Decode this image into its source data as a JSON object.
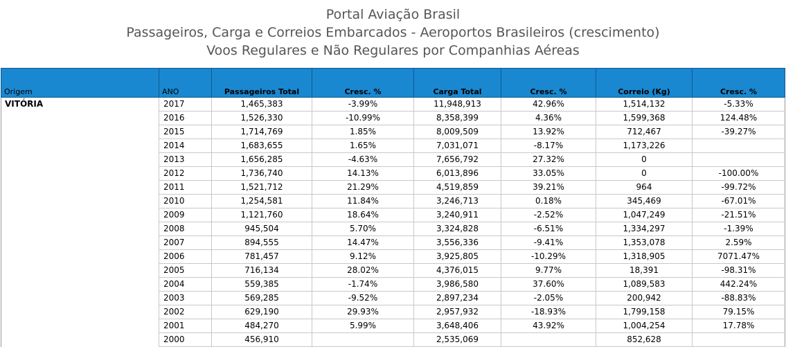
{
  "header": {
    "title": "Portal Aviação Brasil",
    "subtitle1": "Passageiros, Carga e Correios Embarcados - Aeroportos Brasileiros (crescimento)",
    "subtitle2": "Voos Regulares e Não Regulares por Companhias Aéreas"
  },
  "colors": {
    "header_bg": "#1a88d0",
    "title_text": "#555555",
    "grid_line": "#c8c8c8"
  },
  "table": {
    "columns": {
      "origem": "Origem",
      "ano": "ANO",
      "passageiros": "Passageiros Total",
      "cresc1": "Cresc. %",
      "carga": "Carga Total",
      "cresc2": "Cresc. %",
      "correio": "Correio (Kg)",
      "cresc3": "Cresc. %"
    },
    "origem": "VITÓRIA",
    "rows": [
      {
        "ano": "2017",
        "passageiros": "1,465,383",
        "cresc1": "-3.99%",
        "carga": "11,948,913",
        "cresc2": "42.96%",
        "correio": "1,514,132",
        "cresc3": "-5.33%"
      },
      {
        "ano": "2016",
        "passageiros": "1,526,330",
        "cresc1": "-10.99%",
        "carga": "8,358,399",
        "cresc2": "4.36%",
        "correio": "1,599,368",
        "cresc3": "124.48%"
      },
      {
        "ano": "2015",
        "passageiros": "1,714,769",
        "cresc1": "1.85%",
        "carga": "8,009,509",
        "cresc2": "13.92%",
        "correio": "712,467",
        "cresc3": "-39.27%"
      },
      {
        "ano": "2014",
        "passageiros": "1,683,655",
        "cresc1": "1.65%",
        "carga": "7,031,071",
        "cresc2": "-8.17%",
        "correio": "1,173,226",
        "cresc3": ""
      },
      {
        "ano": "2013",
        "passageiros": "1,656,285",
        "cresc1": "-4.63%",
        "carga": "7,656,792",
        "cresc2": "27.32%",
        "correio": "0",
        "cresc3": ""
      },
      {
        "ano": "2012",
        "passageiros": "1,736,740",
        "cresc1": "14.13%",
        "carga": "6,013,896",
        "cresc2": "33.05%",
        "correio": "0",
        "cresc3": "-100.00%"
      },
      {
        "ano": "2011",
        "passageiros": "1,521,712",
        "cresc1": "21.29%",
        "carga": "4,519,859",
        "cresc2": "39.21%",
        "correio": "964",
        "cresc3": "-99.72%"
      },
      {
        "ano": "2010",
        "passageiros": "1,254,581",
        "cresc1": "11.84%",
        "carga": "3,246,713",
        "cresc2": "0.18%",
        "correio": "345,469",
        "cresc3": "-67.01%"
      },
      {
        "ano": "2009",
        "passageiros": "1,121,760",
        "cresc1": "18.64%",
        "carga": "3,240,911",
        "cresc2": "-2.52%",
        "correio": "1,047,249",
        "cresc3": "-21.51%"
      },
      {
        "ano": "2008",
        "passageiros": "945,504",
        "cresc1": "5.70%",
        "carga": "3,324,828",
        "cresc2": "-6.51%",
        "correio": "1,334,297",
        "cresc3": "-1.39%"
      },
      {
        "ano": "2007",
        "passageiros": "894,555",
        "cresc1": "14.47%",
        "carga": "3,556,336",
        "cresc2": "-9.41%",
        "correio": "1,353,078",
        "cresc3": "2.59%"
      },
      {
        "ano": "2006",
        "passageiros": "781,457",
        "cresc1": "9.12%",
        "carga": "3,925,805",
        "cresc2": "-10.29%",
        "correio": "1,318,905",
        "cresc3": "7071.47%"
      },
      {
        "ano": "2005",
        "passageiros": "716,134",
        "cresc1": "28.02%",
        "carga": "4,376,015",
        "cresc2": "9.77%",
        "correio": "18,391",
        "cresc3": "-98.31%"
      },
      {
        "ano": "2004",
        "passageiros": "559,385",
        "cresc1": "-1.74%",
        "carga": "3,986,580",
        "cresc2": "37.60%",
        "correio": "1,089,583",
        "cresc3": "442.24%"
      },
      {
        "ano": "2003",
        "passageiros": "569,285",
        "cresc1": "-9.52%",
        "carga": "2,897,234",
        "cresc2": "-2.05%",
        "correio": "200,942",
        "cresc3": "-88.83%"
      },
      {
        "ano": "2002",
        "passageiros": "629,190",
        "cresc1": "29.93%",
        "carga": "2,957,932",
        "cresc2": "-18.93%",
        "correio": "1,799,158",
        "cresc3": "79.15%"
      },
      {
        "ano": "2001",
        "passageiros": "484,270",
        "cresc1": "5.99%",
        "carga": "3,648,406",
        "cresc2": "43.92%",
        "correio": "1,004,254",
        "cresc3": "17.78%"
      },
      {
        "ano": "2000",
        "passageiros": "456,910",
        "cresc1": "",
        "carga": "2,535,069",
        "cresc2": "",
        "correio": "852,628",
        "cresc3": ""
      }
    ]
  }
}
